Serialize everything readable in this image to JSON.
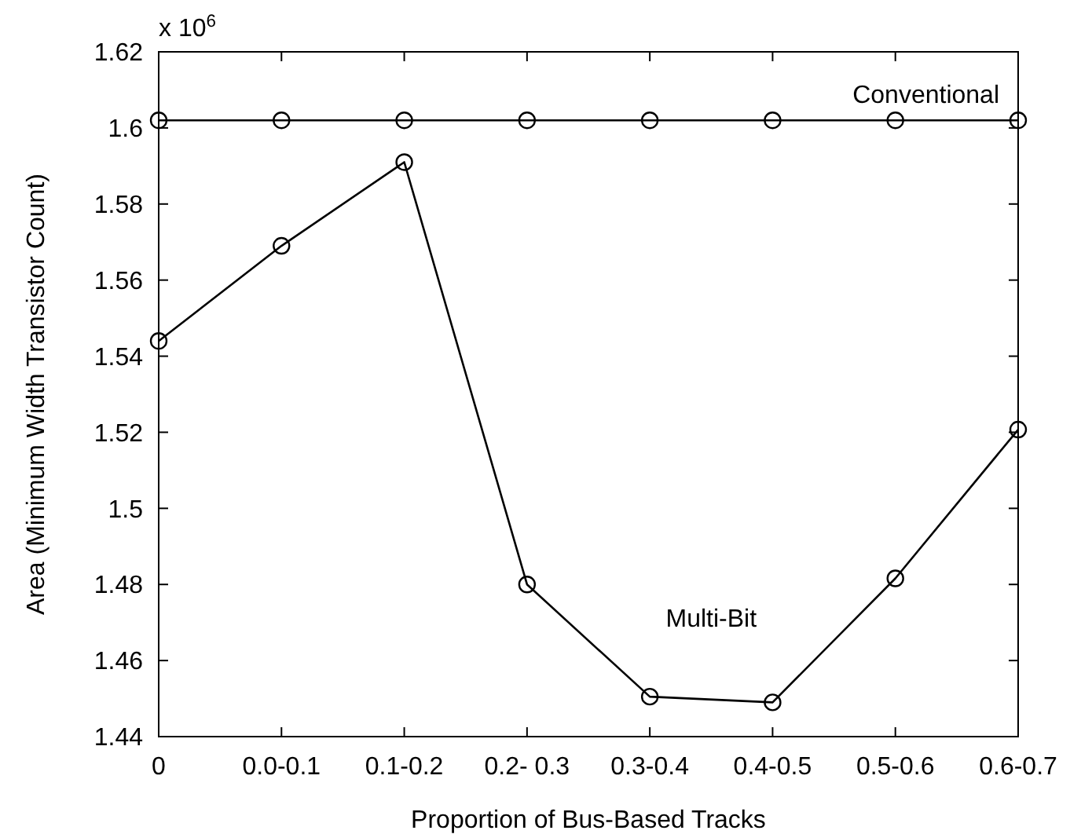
{
  "chart_data": {
    "type": "line",
    "xlabel": "Proportion of Bus-Based Tracks",
    "ylabel": "Area (Minimum Width Transistor Count)",
    "annotations": [
      "x 10$^{6}$"
    ],
    "categories": [
      "0",
      "0.0-0.1",
      "0.1-0.2",
      "0.2- 0.3",
      "0.3-0.4",
      "0.4-0.5",
      "0.5-0.6",
      "0.6-0.7"
    ],
    "series": [
      {
        "name": "Conventional",
        "color": "#000000",
        "values": [
          1.602,
          1.602,
          1.602,
          1.602,
          1.602,
          1.602,
          1.602,
          1.602
        ]
      },
      {
        "name": "Multi-Bit",
        "color": "#000000",
        "values": [
          1.544,
          1.569,
          1.591,
          1.48,
          1.4505,
          1.449,
          1.4816,
          1.5207
        ]
      }
    ],
    "ylim": [
      1.44,
      1.62
    ],
    "yticks": [
      1.44,
      1.46,
      1.48,
      1.5,
      1.52,
      1.54,
      1.56,
      1.58,
      1.6,
      1.62
    ],
    "grid": false,
    "marker": "circle",
    "line_style": "solid"
  }
}
